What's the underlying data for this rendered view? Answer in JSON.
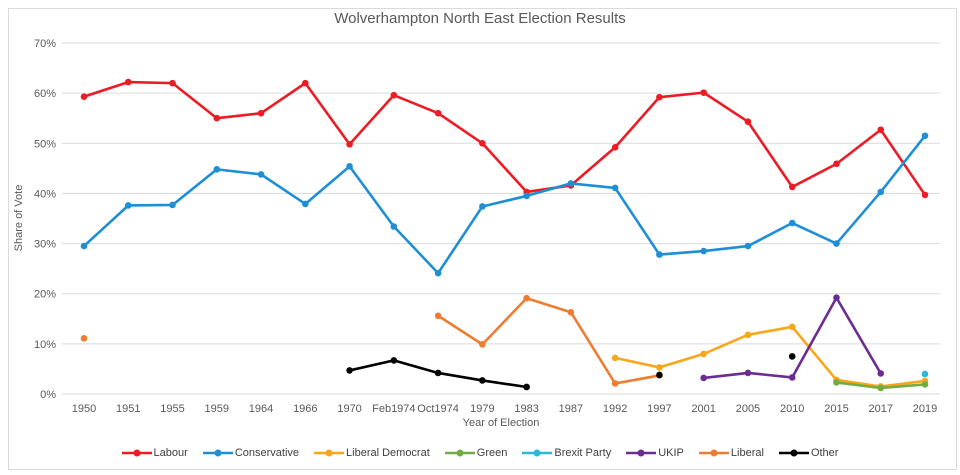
{
  "chart_data": {
    "type": "line",
    "title": "Wolverhampton North East Election Results",
    "xlabel": "Year of Election",
    "ylabel": "Share of Vote",
    "ylim": [
      0,
      70
    ],
    "ytick_step": 10,
    "ytick_suffix": "%",
    "grid": true,
    "legend_position": "bottom",
    "grid_color": "#DADADA",
    "tick_color": "#595959",
    "categories": [
      "1950",
      "1951",
      "1955",
      "1959",
      "1964",
      "1966",
      "1970",
      "Feb1974",
      "Oct1974",
      "1979",
      "1983",
      "1987",
      "1992",
      "1997",
      "2001",
      "2005",
      "2010",
      "2015",
      "2017",
      "2019"
    ],
    "series": [
      {
        "name": "Labour",
        "color": "#ED1B24",
        "values": [
          59.3,
          62.2,
          62.0,
          55.0,
          56.0,
          62.0,
          49.8,
          59.6,
          56.0,
          50.0,
          40.3,
          41.6,
          49.2,
          59.2,
          60.1,
          54.3,
          41.3,
          45.9,
          52.7,
          39.7
        ]
      },
      {
        "name": "Conservative",
        "color": "#1E8FD5",
        "values": [
          29.5,
          37.6,
          37.7,
          44.8,
          43.8,
          37.9,
          45.4,
          33.4,
          24.1,
          37.4,
          39.5,
          42.0,
          41.1,
          27.8,
          28.5,
          29.5,
          34.1,
          30.0,
          40.3,
          51.5
        ]
      },
      {
        "name": "Liberal Democrat",
        "color": "#FAA61A",
        "values": [
          null,
          null,
          null,
          null,
          null,
          null,
          null,
          null,
          null,
          null,
          null,
          null,
          7.2,
          5.3,
          8.0,
          11.8,
          13.4,
          2.8,
          1.5,
          2.6
        ]
      },
      {
        "name": "Green",
        "color": "#70AD47",
        "values": [
          null,
          null,
          null,
          null,
          null,
          null,
          null,
          null,
          null,
          null,
          null,
          null,
          null,
          null,
          null,
          null,
          null,
          2.3,
          1.2,
          1.9
        ]
      },
      {
        "name": "Brexit Party",
        "color": "#2BB8D9",
        "values": [
          null,
          null,
          null,
          null,
          null,
          null,
          null,
          null,
          null,
          null,
          null,
          null,
          null,
          null,
          null,
          null,
          null,
          null,
          null,
          4.0
        ]
      },
      {
        "name": "UKIP",
        "color": "#6C2C91",
        "values": [
          null,
          null,
          null,
          null,
          null,
          null,
          null,
          null,
          null,
          null,
          null,
          null,
          null,
          null,
          3.2,
          4.2,
          3.3,
          19.2,
          4.1,
          null
        ]
      },
      {
        "name": "Liberal",
        "color": "#ED7D31",
        "values": [
          11.1,
          null,
          null,
          null,
          null,
          null,
          null,
          null,
          15.6,
          9.9,
          19.1,
          16.3,
          2.1,
          3.7,
          null,
          null,
          null,
          null,
          null,
          null
        ]
      },
      {
        "name": "Other",
        "color": "#000000",
        "values": [
          null,
          null,
          null,
          null,
          null,
          null,
          4.7,
          6.7,
          4.2,
          2.7,
          1.4,
          null,
          null,
          3.8,
          null,
          null,
          7.5,
          null,
          null,
          null
        ]
      }
    ]
  }
}
